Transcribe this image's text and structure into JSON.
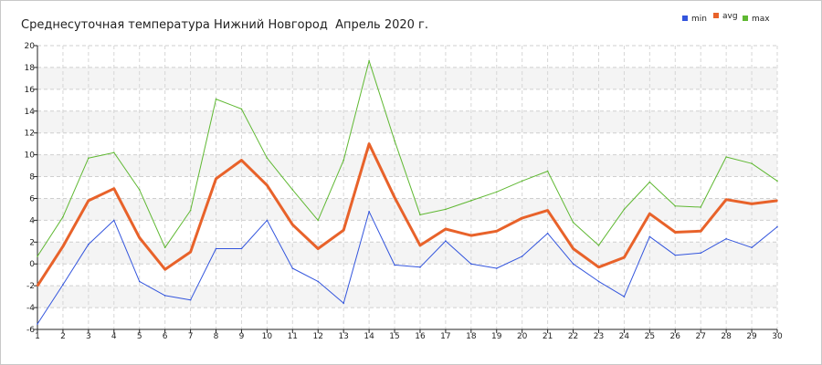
{
  "chart_data": {
    "type": "line",
    "title": "Среднесуточная температура Нижний Новгород  Апрель 2020 г.",
    "x": [
      1,
      2,
      3,
      4,
      5,
      6,
      7,
      8,
      9,
      10,
      11,
      12,
      13,
      14,
      15,
      16,
      17,
      18,
      19,
      20,
      21,
      22,
      23,
      24,
      25,
      26,
      27,
      28,
      29,
      30
    ],
    "ylim": [
      -6,
      20
    ],
    "yticks": [
      -6,
      -4,
      -2,
      0,
      2,
      4,
      6,
      8,
      10,
      12,
      14,
      16,
      18,
      20
    ],
    "grid": true,
    "legend_position": "top-right",
    "series": [
      {
        "name": "min",
        "color": "#3355dd",
        "values": [
          -5.5,
          -1.9,
          1.8,
          4.0,
          -1.6,
          -2.9,
          -3.3,
          1.4,
          1.4,
          4.0,
          -0.4,
          -1.6,
          -3.6,
          4.8,
          -0.1,
          -0.3,
          2.1,
          0.0,
          -0.4,
          0.7,
          2.8,
          0.0,
          -1.6,
          -3.0,
          2.5,
          0.8,
          1.0,
          2.3,
          1.5,
          3.4
        ]
      },
      {
        "name": "avg",
        "color": "#e8622a",
        "values": [
          -2.0,
          1.6,
          5.8,
          6.9,
          2.4,
          -0.5,
          1.1,
          7.8,
          9.5,
          7.2,
          3.6,
          1.4,
          3.1,
          11.0,
          6.1,
          1.7,
          3.2,
          2.6,
          3.0,
          4.2,
          4.9,
          1.4,
          -0.3,
          0.6,
          4.6,
          2.9,
          3.0,
          5.9,
          5.5,
          5.8
        ]
      },
      {
        "name": "max",
        "color": "#5fb832",
        "values": [
          0.7,
          4.3,
          9.7,
          10.2,
          6.8,
          1.5,
          4.9,
          15.1,
          14.2,
          9.7,
          6.8,
          4.0,
          9.5,
          18.6,
          11.3,
          4.5,
          5.0,
          5.8,
          6.6,
          7.6,
          8.5,
          3.8,
          1.7,
          5.0,
          7.5,
          5.3,
          5.2,
          9.8,
          9.2,
          7.6
        ]
      }
    ]
  }
}
